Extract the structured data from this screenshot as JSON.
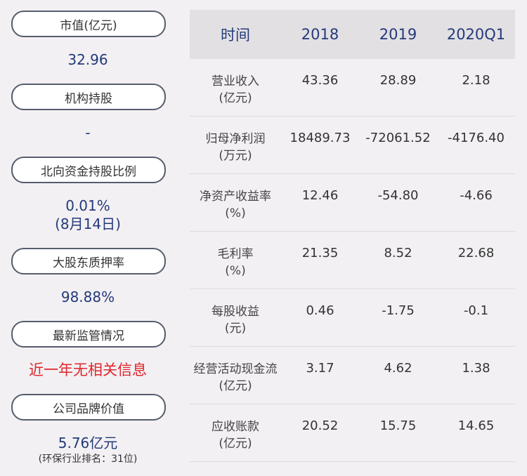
{
  "left": {
    "market_cap_label": "市值(亿元)",
    "market_cap_value": "32.96",
    "institution_label": "机构持股",
    "institution_value": "-",
    "northbound_label": "北向资金持股比例",
    "northbound_value": "0.01%",
    "northbound_date": "(8月14日)",
    "pledge_label": "大股东质押率",
    "pledge_value": "98.88%",
    "regulation_label": "最新监管情况",
    "regulation_value": "近一年无相关信息",
    "brand_label": "公司品牌价值",
    "brand_value": "5.76亿元",
    "brand_rank": "(环保行业排名：31位)"
  },
  "table": {
    "headers": [
      "时间",
      "2018",
      "2019",
      "2020Q1"
    ],
    "rows": [
      {
        "name": "营业收入",
        "unit": "(亿元)",
        "values": [
          "43.36",
          "28.89",
          "2.18"
        ]
      },
      {
        "name": "归母净利润",
        "unit": "(万元)",
        "values": [
          "18489.73",
          "-72061.52",
          "-4176.40"
        ]
      },
      {
        "name": "净资产收益率",
        "unit": "(%)",
        "values": [
          "12.46",
          "-54.80",
          "-4.66"
        ]
      },
      {
        "name": "毛利率",
        "unit": "(%)",
        "values": [
          "21.35",
          "8.52",
          "22.68"
        ]
      },
      {
        "name": "每股收益",
        "unit": "(元)",
        "values": [
          "0.46",
          "-1.75",
          "-0.1"
        ]
      },
      {
        "name": "经营活动现金流",
        "unit": "(亿元)",
        "values": [
          "3.17",
          "4.62",
          "1.38"
        ]
      },
      {
        "name": "应收账款",
        "unit": "(亿元)",
        "values": [
          "20.52",
          "15.75",
          "14.65"
        ]
      }
    ]
  },
  "colors": {
    "background": "#f3f0f3",
    "value_blue": "#233a7a",
    "alert_red": "#e0262b",
    "header_bg": "#e3e0e3"
  }
}
